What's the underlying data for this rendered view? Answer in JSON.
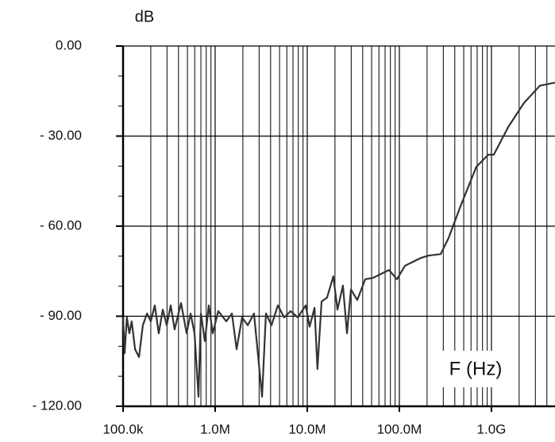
{
  "chart_data": {
    "type": "line",
    "y_label": "dB",
    "x_label": "F (Hz)",
    "xscale": "log",
    "grid": true,
    "xlim": [
      100000,
      4900000000
    ],
    "ylim": [
      -120,
      0
    ],
    "xticks": [
      {
        "value": 100000,
        "label": "100.0k"
      },
      {
        "value": 1000000,
        "label": "1.0M"
      },
      {
        "value": 10000000,
        "label": "10.0M"
      },
      {
        "value": 100000000,
        "label": "100.0M"
      },
      {
        "value": 1000000000,
        "label": "1.0G"
      }
    ],
    "yticks": [
      {
        "value": 0,
        "label": "0.00"
      },
      {
        "value": -30,
        "label": "- 30.00"
      },
      {
        "value": -60,
        "label": "- 60.00"
      },
      {
        "value": -90,
        "label": "- 90.00"
      },
      {
        "value": -120,
        "label": "- 120.00"
      }
    ],
    "x": [
      100000,
      104000,
      110000,
      117000,
      124000,
      135000,
      149000,
      164000,
      182000,
      200000,
      221000,
      244000,
      270000,
      298000,
      329000,
      363000,
      426000,
      490000,
      541000,
      597000,
      659000,
      700000,
      773000,
      853000,
      942000,
      1080000,
      1320000,
      1520000,
      1710000,
      1960000,
      2260000,
      2640000,
      3230000,
      3560000,
      4090000,
      4800000,
      5620000,
      6590000,
      7890000,
      9620000,
      10600000,
      12000000,
      12900000,
      14300000,
      16400000,
      19200000,
      21300000,
      24400000,
      27000000,
      29800000,
      34900000,
      42600000,
      52000000,
      63400000,
      77300000,
      94200000,
      115000000,
      140000000,
      171000000,
      208000000,
      281000000,
      342000000,
      461000000,
      686000000,
      925000000,
      1060000000,
      1520000000,
      2250000000,
      3360000000,
      4900000000
    ],
    "series": [
      {
        "color": "#333333",
        "values": [
          -90.4,
          -102.3,
          -90.4,
          -95.7,
          -91.7,
          -101.0,
          -103.6,
          -93.0,
          -89.1,
          -91.7,
          -86.4,
          -95.7,
          -87.8,
          -93.0,
          -86.4,
          -94.4,
          -85.6,
          -95.7,
          -89.1,
          -95.7,
          -116.8,
          -89.1,
          -98.3,
          -86.4,
          -95.7,
          -88.3,
          -91.7,
          -89.1,
          -101.0,
          -90.4,
          -93.0,
          -89.1,
          -116.8,
          -89.1,
          -93.0,
          -86.4,
          -90.4,
          -88.3,
          -90.4,
          -86.4,
          -93.5,
          -87.2,
          -107.6,
          -85.1,
          -83.8,
          -76.7,
          -87.8,
          -79.8,
          -95.7,
          -81.1,
          -84.6,
          -77.7,
          -77.2,
          -75.9,
          -74.6,
          -77.7,
          -73.2,
          -71.9,
          -70.6,
          -69.8,
          -69.3,
          -64.0,
          -53.4,
          -40.2,
          -36.2,
          -36.2,
          -27.0,
          -19.0,
          -13.2,
          -12.2
        ]
      }
    ]
  }
}
